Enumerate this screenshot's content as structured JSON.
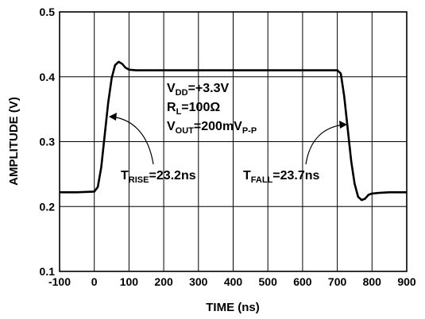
{
  "chart_data": {
    "type": "line",
    "xlabel": "TIME (ns)",
    "ylabel": "AMPLITUDE (V)",
    "xlim": [
      -100,
      900
    ],
    "ylim": [
      0.1,
      0.5
    ],
    "x_ticks": [
      "-100",
      "0",
      "100",
      "200",
      "300",
      "400",
      "500",
      "600",
      "700",
      "800",
      "900"
    ],
    "y_ticks": [
      "0.1",
      "0.2",
      "0.3",
      "0.4",
      "0.5"
    ],
    "grid": true,
    "series": [
      {
        "x": [
          -100,
          -50,
          0,
          10,
          20,
          30,
          40,
          50,
          60,
          70,
          80,
          90,
          100,
          120,
          150,
          200,
          300,
          400,
          500,
          600,
          690,
          700,
          710,
          720,
          730,
          740,
          750,
          760,
          770,
          780,
          790,
          800,
          820,
          850,
          900
        ],
        "y": [
          0.222,
          0.222,
          0.223,
          0.23,
          0.26,
          0.31,
          0.36,
          0.398,
          0.418,
          0.423,
          0.42,
          0.414,
          0.411,
          0.41,
          0.41,
          0.41,
          0.41,
          0.41,
          0.41,
          0.41,
          0.41,
          0.41,
          0.405,
          0.37,
          0.32,
          0.27,
          0.235,
          0.215,
          0.21,
          0.212,
          0.218,
          0.22,
          0.221,
          0.222,
          0.222
        ]
      }
    ],
    "annotations": {
      "vdd": {
        "main": "V",
        "sub": "DD",
        "rest": "=+3.3V"
      },
      "rl": {
        "main": "R",
        "sub": "L",
        "rest": "=100Ω"
      },
      "vout": {
        "main": "V",
        "sub": "OUT",
        "rest": "=200mV",
        "sub2": "P-P"
      },
      "trise": {
        "main": "T",
        "sub": "RISE",
        "rest": "=23.2ns"
      },
      "tfall": {
        "main": "T",
        "sub": "FALL",
        "rest": "=23.7ns"
      }
    }
  }
}
